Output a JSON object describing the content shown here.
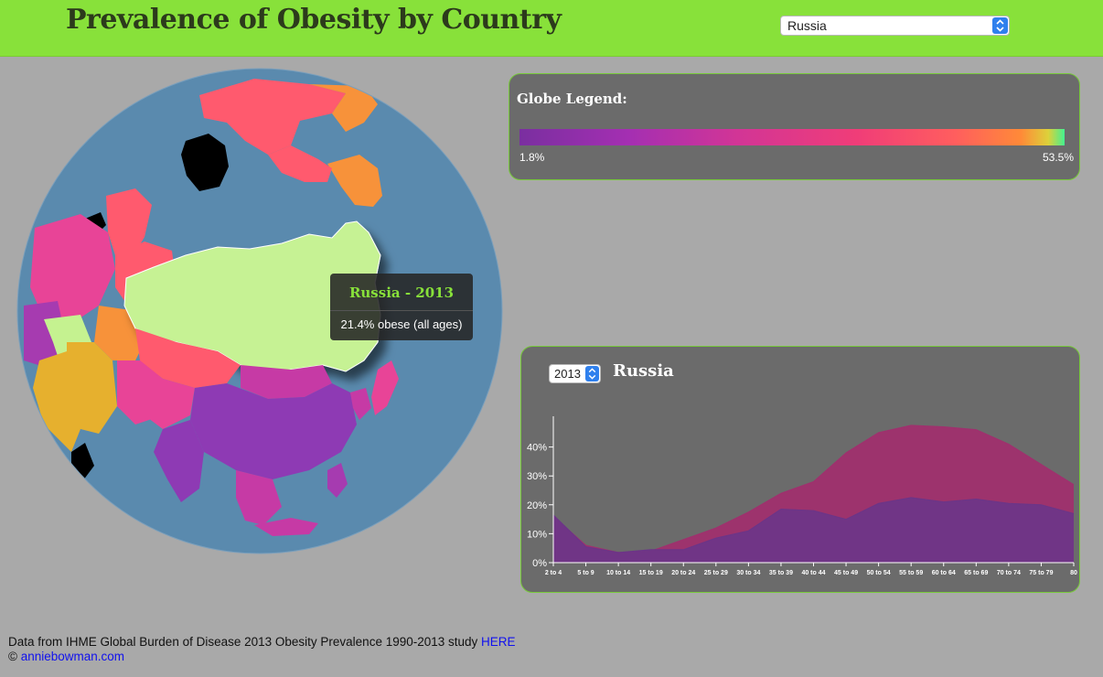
{
  "header": {
    "title": "Prevalence of Obesity by Country",
    "country_select_value": "Russia"
  },
  "tooltip": {
    "title": "Russia - 2013",
    "text": "21.4% obese (all ages)"
  },
  "legend": {
    "title": "Globe Legend:",
    "min_label": "1.8%",
    "max_label": "53.5%"
  },
  "chart_panel": {
    "year_select_value": "2013",
    "country": "Russia"
  },
  "chart_data": {
    "type": "area",
    "categories": [
      "2 to 4",
      "5 to 9",
      "10 to 14",
      "15 to 19",
      "20 to 24",
      "25 to 29",
      "30 to 34",
      "35 to 39",
      "40 to 44",
      "45 to 49",
      "50 to 54",
      "55 to 59",
      "60 to 64",
      "65 to 69",
      "70 to 74",
      "75 to 79",
      "80"
    ],
    "yticks": [
      "0%",
      "10%",
      "20%",
      "30%",
      "40%"
    ],
    "ylim": [
      0,
      50
    ],
    "series": [
      {
        "values": [
          16,
          6,
          3.5,
          4,
          8,
          12,
          17.5,
          24,
          28,
          38,
          45,
          47.5,
          47,
          46,
          41,
          34,
          27
        ],
        "color": "#a0306e"
      },
      {
        "values": [
          16.5,
          5.5,
          3.5,
          4.5,
          4.5,
          8.5,
          11,
          18.5,
          18,
          15,
          20.5,
          22.5,
          21,
          22,
          20.5,
          20,
          17
        ],
        "color": "#6b3588"
      }
    ]
  },
  "footer": {
    "text": "Data from IHME Global Burden of Disease 2013 Obesity Prevalence 1990-2013 study",
    "link_label": "HERE",
    "copyright_symbol": "©",
    "site_link": "anniebowman.com"
  },
  "colors": {
    "header_bg": "#88e13a",
    "ocean": "#5a8aae",
    "russia_fill": "#c6f294",
    "panel_bg": "#6b6b6b",
    "panel_border": "#77c93a"
  }
}
